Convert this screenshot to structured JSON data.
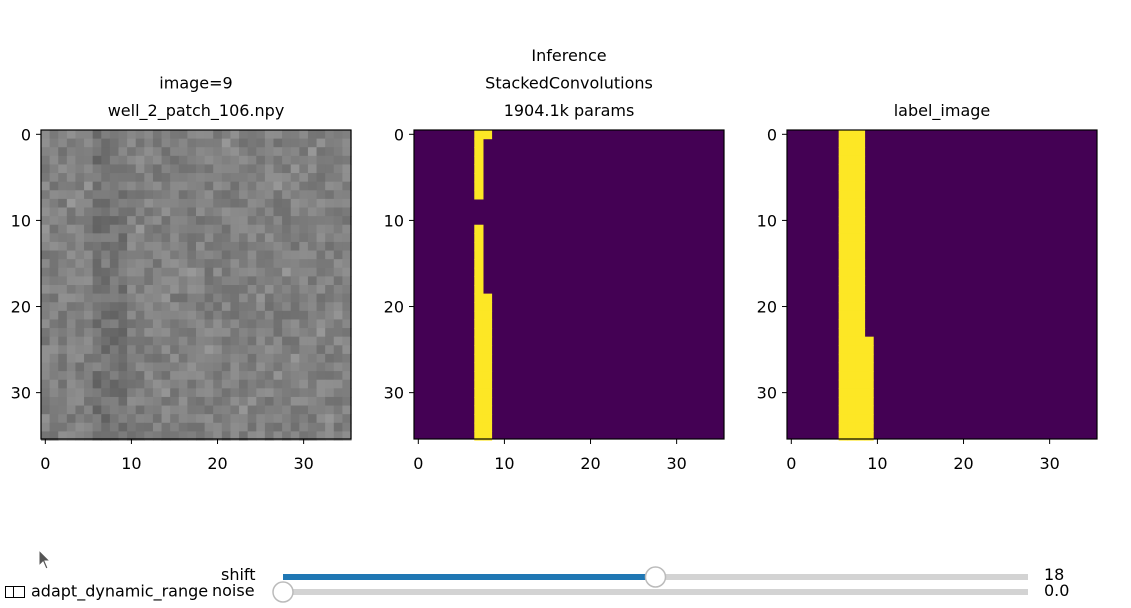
{
  "panels": [
    {
      "title_lines": [
        "image=9",
        "well_2_patch_106.npy"
      ],
      "kind": "grayscale",
      "x_ticks": [
        "0",
        "10",
        "20",
        "30"
      ],
      "y_ticks": [
        "0",
        "10",
        "20",
        "30"
      ]
    },
    {
      "title_lines": [
        "Inference",
        "StackedConvolutions",
        "1904.1k params"
      ],
      "kind": "mask_prediction",
      "x_ticks": [
        "0",
        "10",
        "20",
        "30"
      ],
      "y_ticks": [
        "0",
        "10",
        "20",
        "30"
      ]
    },
    {
      "title_lines": [
        "label_image"
      ],
      "kind": "mask_label",
      "x_ticks": [
        "0",
        "10",
        "20",
        "30"
      ],
      "y_ticks": [
        "0",
        "10",
        "20",
        "30"
      ]
    }
  ],
  "grid_size": 36,
  "colors": {
    "background_class": "#440154",
    "foreground_class": "#fde725",
    "slider_fill": "#1f77b4",
    "slider_track": "#d3d3d3"
  },
  "prediction_mask_rows": {
    "0": [
      7,
      8
    ],
    "1-7": [
      7
    ],
    "11-18": [
      7
    ],
    "19-35": [
      7,
      8
    ]
  },
  "label_mask_rows": {
    "0-23": [
      6,
      7,
      8
    ],
    "24-35": [
      6,
      7,
      8,
      9
    ]
  },
  "controls": {
    "checkbox_label": "adapt_dynamic_range",
    "checkbox_checked": false,
    "shift": {
      "label": "shift",
      "value_text": "18",
      "fraction": 0.5
    },
    "noise": {
      "label": "noise",
      "value_text": "0.0",
      "fraction": 0.0
    }
  }
}
